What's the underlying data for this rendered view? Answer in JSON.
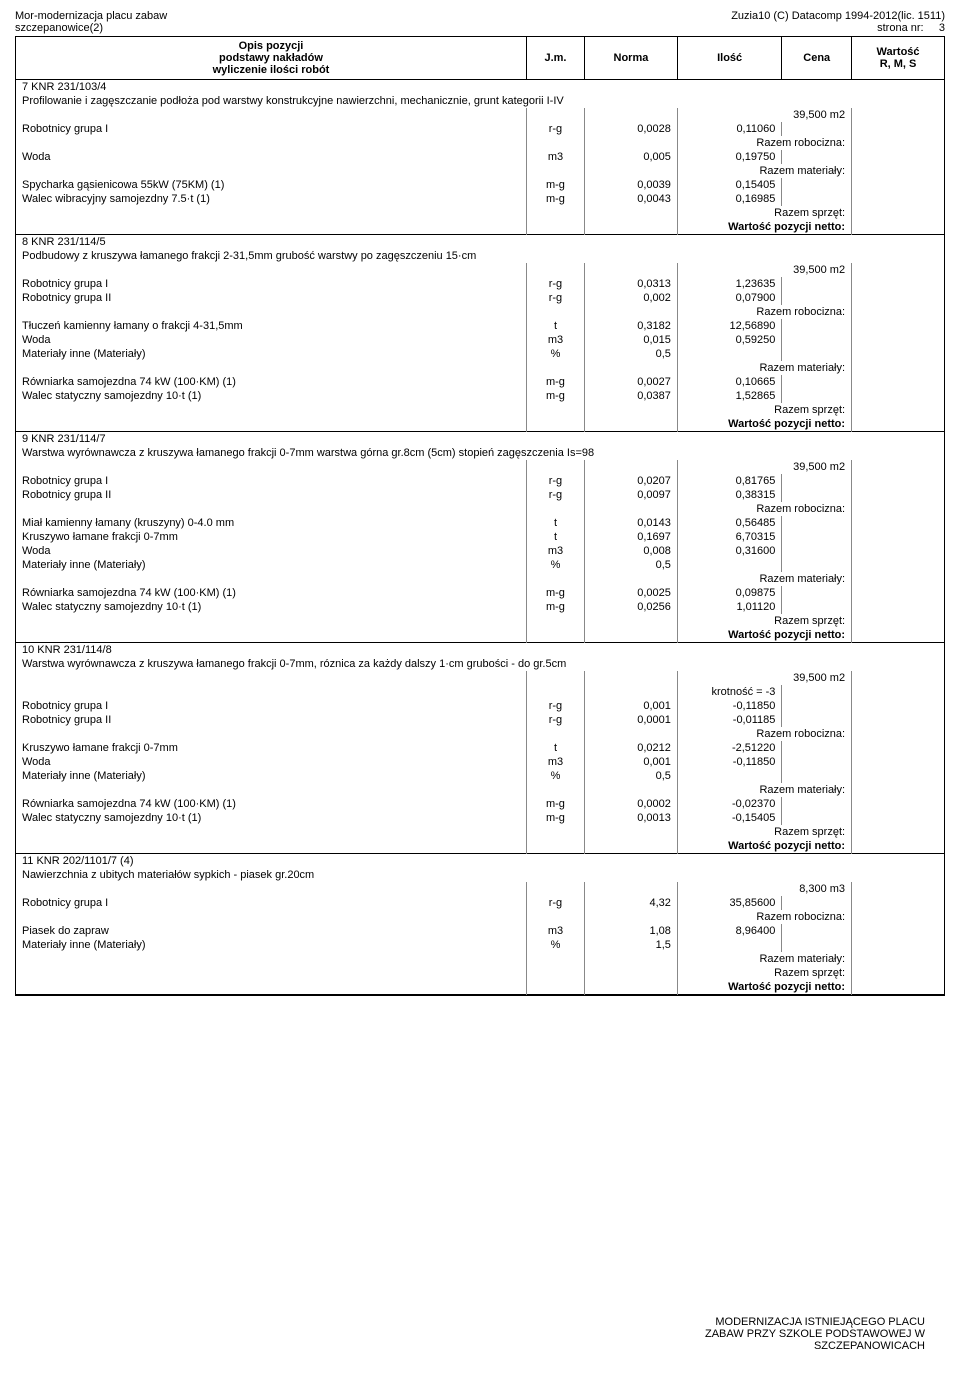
{
  "header": {
    "left1": "Mor-modernizacja placu zabaw",
    "left2": "szczepanowice(2)",
    "right1": "Zuzia10 (C) Datacomp 1994-2012(lic. 1511)",
    "right2": "strona nr:",
    "pageNo": "3"
  },
  "columns": {
    "opis1": "Opis pozycji",
    "opis2": "podstawy nakładów",
    "opis3": "wyliczenie ilości robót",
    "jm": "J.m.",
    "norma": "Norma",
    "ilosc": "Ilość",
    "cena": "Cena",
    "wartosc1": "Wartość",
    "wartosc2": "R, M, S"
  },
  "labels": {
    "razemRob": "Razem robocizna:",
    "razemMat": "Razem materiały:",
    "razemSpr": "Razem sprzęt:",
    "wartoscPoz": "Wartość pozycji netto:",
    "krotnosc": "krotność = -3"
  },
  "items": [
    {
      "code": "7 KNR 231/103/4",
      "desc": "Profilowanie i zagęszczanie podłoża pod warstwy konstrukcyjne nawierzchni, mechanicznie, grunt kategorii I-IV",
      "qty": "39,500",
      "unit": "m2",
      "rows": [
        {
          "label": "Robotnicy grupa I",
          "jm": "r-g",
          "norma": "0,0028",
          "ilosc": "0,11060"
        }
      ],
      "razemRob": true,
      "rows2": [
        {
          "label": "Woda",
          "jm": "m3",
          "norma": "0,005",
          "ilosc": "0,19750"
        }
      ],
      "razemMat": true,
      "rows3": [
        {
          "label": "Spycharka gąsienicowa 55kW (75KM) (1)",
          "jm": "m-g",
          "norma": "0,0039",
          "ilosc": "0,15405"
        },
        {
          "label": "Walec wibracyjny samojezdny 7.5·t (1)",
          "jm": "m-g",
          "norma": "0,0043",
          "ilosc": "0,16985"
        }
      ],
      "razemSpr": true
    },
    {
      "code": "8 KNR 231/114/5",
      "desc": "Podbudowy z kruszywa łamanego frakcji 2-31,5mm grubość warstwy po zagęszczeniu 15·cm",
      "qty": "39,500",
      "unit": "m2",
      "rows": [
        {
          "label": "Robotnicy grupa I",
          "jm": "r-g",
          "norma": "0,0313",
          "ilosc": "1,23635"
        },
        {
          "label": "Robotnicy grupa II",
          "jm": "r-g",
          "norma": "0,002",
          "ilosc": "0,07900"
        }
      ],
      "razemRob": true,
      "rows2": [
        {
          "label": "Tłuczeń kamienny łamany o frakcji 4-31,5mm",
          "jm": "t",
          "norma": "0,3182",
          "ilosc": "12,56890"
        },
        {
          "label": "Woda",
          "jm": "m3",
          "norma": "0,015",
          "ilosc": "0,59250"
        },
        {
          "label": "Materiały inne (Materiały)",
          "jm": "%",
          "norma": "0,5",
          "ilosc": ""
        }
      ],
      "razemMat": true,
      "rows3": [
        {
          "label": "Równiarka samojezdna 74 kW (100·KM) (1)",
          "jm": "m-g",
          "norma": "0,0027",
          "ilosc": "0,10665"
        },
        {
          "label": "Walec statyczny samojezdny 10·t (1)",
          "jm": "m-g",
          "norma": "0,0387",
          "ilosc": "1,52865"
        }
      ],
      "razemSpr": true
    },
    {
      "code": "9 KNR 231/114/7",
      "desc": "Warstwa wyrównawcza z kruszywa łamanego frakcji 0-7mm warstwa górna gr.8cm (5cm) stopień zagęszczenia Is=98",
      "qty": "39,500",
      "unit": "m2",
      "rows": [
        {
          "label": "Robotnicy grupa I",
          "jm": "r-g",
          "norma": "0,0207",
          "ilosc": "0,81765"
        },
        {
          "label": "Robotnicy grupa II",
          "jm": "r-g",
          "norma": "0,0097",
          "ilosc": "0,38315"
        }
      ],
      "razemRob": true,
      "rows2": [
        {
          "label": "Miał kamienny łamany (kruszyny) 0-4.0 mm",
          "jm": "t",
          "norma": "0,0143",
          "ilosc": "0,56485"
        },
        {
          "label": "Kruszywo łamane frakcji 0-7mm",
          "jm": "t",
          "norma": "0,1697",
          "ilosc": "6,70315"
        },
        {
          "label": "Woda",
          "jm": "m3",
          "norma": "0,008",
          "ilosc": "0,31600"
        },
        {
          "label": "Materiały inne (Materiały)",
          "jm": "%",
          "norma": "0,5",
          "ilosc": ""
        }
      ],
      "razemMat": true,
      "rows3": [
        {
          "label": "Równiarka samojezdna 74 kW (100·KM) (1)",
          "jm": "m-g",
          "norma": "0,0025",
          "ilosc": "0,09875"
        },
        {
          "label": "Walec statyczny samojezdny 10·t (1)",
          "jm": "m-g",
          "norma": "0,0256",
          "ilosc": "1,01120"
        }
      ],
      "razemSpr": true
    },
    {
      "code": "10 KNR 231/114/8",
      "desc": "Warstwa wyrównawcza z kruszywa łamanego frakcji 0-7mm, róznica za każdy dalszy 1·cm grubości - do gr.5cm",
      "qty": "39,500",
      "unit": "m2",
      "krotnosc": true,
      "rows": [
        {
          "label": "Robotnicy grupa I",
          "jm": "r-g",
          "norma": "0,001",
          "ilosc": "-0,11850"
        },
        {
          "label": "Robotnicy grupa II",
          "jm": "r-g",
          "norma": "0,0001",
          "ilosc": "-0,01185"
        }
      ],
      "razemRob": true,
      "rows2": [
        {
          "label": "Kruszywo łamane frakcji 0-7mm",
          "jm": "t",
          "norma": "0,0212",
          "ilosc": "-2,51220"
        },
        {
          "label": "Woda",
          "jm": "m3",
          "norma": "0,001",
          "ilosc": "-0,11850"
        },
        {
          "label": "Materiały inne (Materiały)",
          "jm": "%",
          "norma": "0,5",
          "ilosc": ""
        }
      ],
      "razemMat": true,
      "rows3": [
        {
          "label": "Równiarka samojezdna 74 kW (100·KM) (1)",
          "jm": "m-g",
          "norma": "0,0002",
          "ilosc": "-0,02370"
        },
        {
          "label": "Walec statyczny samojezdny 10·t (1)",
          "jm": "m-g",
          "norma": "0,0013",
          "ilosc": "-0,15405"
        }
      ],
      "razemSpr": true
    },
    {
      "code": "11 KNR 202/1101/7 (4)",
      "desc": "Nawierzchnia z ubitych materiałów sypkich -  piasek gr.20cm",
      "qty": "8,300",
      "unit": "m3",
      "rows": [
        {
          "label": "Robotnicy grupa I",
          "jm": "r-g",
          "norma": "4,32",
          "ilosc": "35,85600"
        }
      ],
      "razemRob": true,
      "rows2": [
        {
          "label": "Piasek do zapraw",
          "jm": "m3",
          "norma": "1,08",
          "ilosc": "8,96400"
        },
        {
          "label": "Materiały inne (Materiały)",
          "jm": "%",
          "norma": "1,5",
          "ilosc": ""
        }
      ],
      "razemMat": true,
      "rows3": [],
      "razemSpr": true
    }
  ],
  "footer": {
    "line1": "MODERNIZACJA ISTNIEJĄCEGO PLACU",
    "line2": "ZABAW PRZY SZKOLE PODSTAWOWEJ W",
    "line3": "SZCZEPANOWICACH"
  }
}
